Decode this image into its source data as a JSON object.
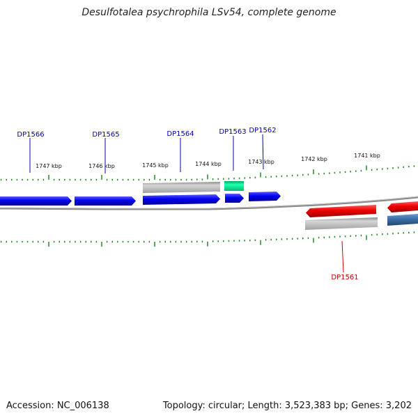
{
  "title": "Desulfotalea psychrophila LSv54, complete genome",
  "footer": {
    "accession": "Accession: NC_006138",
    "topology": "Topology: circular; Length: 3,523,383 bp; Genes: 3,202"
  },
  "ruler": {
    "ticks": [
      {
        "label": "1747 kbp"
      },
      {
        "label": "1746 kbp"
      },
      {
        "label": "1745 kbp"
      },
      {
        "label": "1744 kbp"
      },
      {
        "label": "1743 kbp"
      },
      {
        "label": "1742 kbp"
      },
      {
        "label": "1741 kbp"
      }
    ]
  },
  "genes": [
    {
      "label": "DP1566",
      "strand": "forward",
      "color": "#0000ee"
    },
    {
      "label": "DP1565",
      "strand": "forward",
      "color": "#0000ee"
    },
    {
      "label": "DP1564",
      "strand": "forward",
      "color": "#0000ee"
    },
    {
      "label": "DP1563",
      "strand": "forward",
      "color": "#0000ee"
    },
    {
      "label": "DP1562",
      "strand": "forward",
      "color": "#0000ee"
    },
    {
      "label": "DP1561",
      "strand": "reverse",
      "color": "#ee0000"
    }
  ],
  "colors": {
    "forward_cds": "#0000ee",
    "reverse_cds": "#ee0000",
    "rna_feature": "#00dd88",
    "gene_feature": "#aaaaaa",
    "other_feature": "#3a6ea5",
    "backbone": "#888888",
    "tick": "#228822",
    "forward_label": "#0000aa",
    "reverse_label": "#cc0000"
  }
}
